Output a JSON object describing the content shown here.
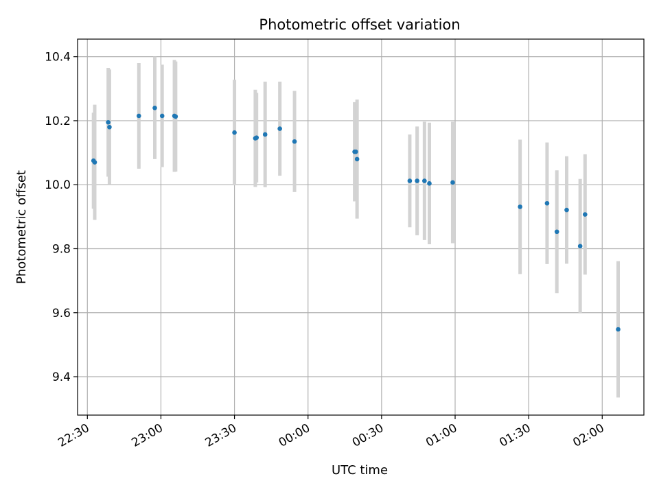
{
  "chart_data": {
    "type": "scatter",
    "title": "Photometric offset variation",
    "xlabel": "UTC time",
    "ylabel": "Photometric offset",
    "x_axis_type": "time",
    "xlim": [
      "22:26",
      "02:17"
    ],
    "ylim": [
      9.28,
      10.455
    ],
    "x_ticks": [
      "22:30",
      "23:00",
      "23:30",
      "00:00",
      "00:30",
      "01:00",
      "01:30",
      "02:00"
    ],
    "y_ticks": [
      9.4,
      9.6,
      9.8,
      10.0,
      10.2,
      10.4
    ],
    "grid": true,
    "colors": {
      "point": "#1f77b4",
      "errorbar": "#d3d3d3",
      "grid": "#b0b0b0"
    },
    "points": [
      {
        "x": "22:32:30",
        "y": 10.075,
        "yerr": 0.15
      },
      {
        "x": "22:33:00",
        "y": 10.07,
        "yerr": 0.18
      },
      {
        "x": "22:38:30",
        "y": 10.195,
        "yerr": 0.17
      },
      {
        "x": "22:39:00",
        "y": 10.18,
        "yerr": 0.18
      },
      {
        "x": "22:51:00",
        "y": 10.215,
        "yerr": 0.165
      },
      {
        "x": "22:57:30",
        "y": 10.24,
        "yerr": 0.16
      },
      {
        "x": "23:00:30",
        "y": 10.215,
        "yerr": 0.16
      },
      {
        "x": "23:05:30",
        "y": 10.215,
        "yerr": 0.175
      },
      {
        "x": "23:06:00",
        "y": 10.213,
        "yerr": 0.172
      },
      {
        "x": "23:30:00",
        "y": 10.163,
        "yerr": 0.165
      },
      {
        "x": "23:38:30",
        "y": 10.145,
        "yerr": 0.152
      },
      {
        "x": "23:39:00",
        "y": 10.147,
        "yerr": 0.14
      },
      {
        "x": "23:42:30",
        "y": 10.157,
        "yerr": 0.165
      },
      {
        "x": "23:48:30",
        "y": 10.175,
        "yerr": 0.147
      },
      {
        "x": "23:54:30",
        "y": 10.135,
        "yerr": 0.158
      },
      {
        "x": "00:19:00",
        "y": 10.103,
        "yerr": 0.155
      },
      {
        "x": "00:19:30",
        "y": 10.103,
        "yerr": 0.153
      },
      {
        "x": "00:20:00",
        "y": 10.08,
        "yerr": 0.186
      },
      {
        "x": "00:41:30",
        "y": 10.012,
        "yerr": 0.145
      },
      {
        "x": "00:44:30",
        "y": 10.012,
        "yerr": 0.17
      },
      {
        "x": "00:47:30",
        "y": 10.012,
        "yerr": 0.185
      },
      {
        "x": "00:49:30",
        "y": 10.004,
        "yerr": 0.19
      },
      {
        "x": "00:59:00",
        "y": 10.007,
        "yerr": 0.19
      },
      {
        "x": "01:26:30",
        "y": 9.931,
        "yerr": 0.21
      },
      {
        "x": "01:37:30",
        "y": 9.942,
        "yerr": 0.19
      },
      {
        "x": "01:41:30",
        "y": 9.853,
        "yerr": 0.192
      },
      {
        "x": "01:45:30",
        "y": 9.921,
        "yerr": 0.168
      },
      {
        "x": "01:51:00",
        "y": 9.808,
        "yerr": 0.21
      },
      {
        "x": "01:53:00",
        "y": 9.907,
        "yerr": 0.188
      },
      {
        "x": "02:06:30",
        "y": 9.548,
        "yerr": 0.213
      }
    ]
  }
}
